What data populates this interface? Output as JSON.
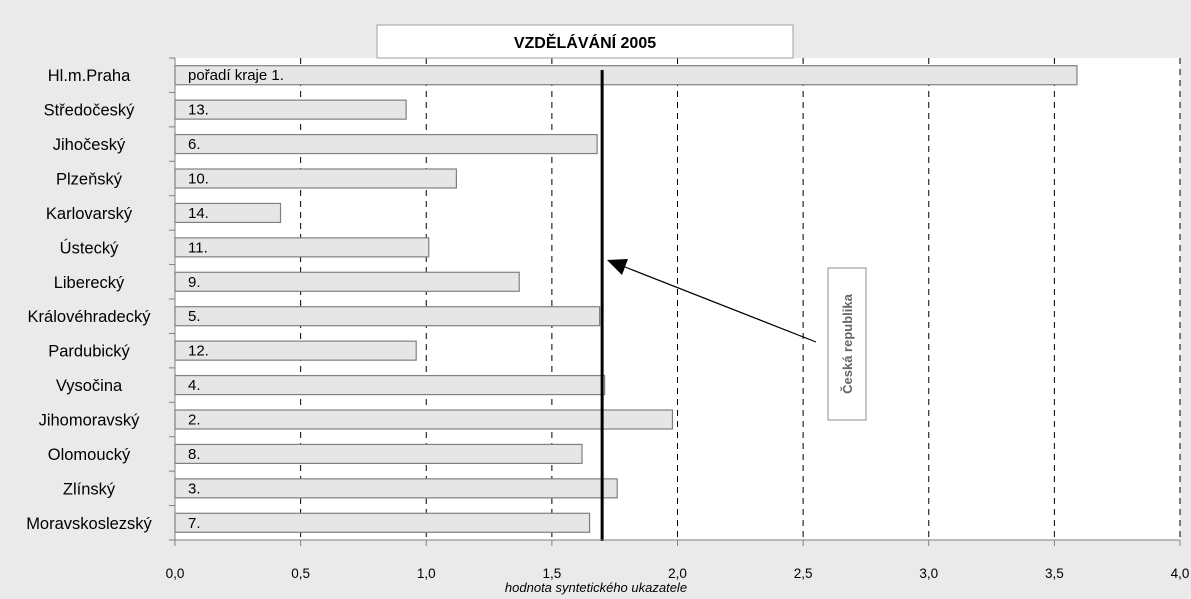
{
  "chart_data": {
    "type": "bar",
    "orientation": "horizontal",
    "title": "VZDĚLÁVÁNÍ 2005",
    "xlabel": "hodnota syntetického ukazatele",
    "ylabel": "",
    "xlim": [
      0,
      4
    ],
    "x_ticks": [
      "0,0",
      "0,5",
      "1,0",
      "1,5",
      "2,0",
      "2,5",
      "3,0",
      "3,5",
      "4,0"
    ],
    "grid": "vertical dashed",
    "categories": [
      "Hl.m.Praha",
      "Středočeský",
      "Jihočeský",
      "Plzeňský",
      "Karlovarský",
      "Ústecký",
      "Liberecký",
      "Královéhradecký",
      "Pardubický",
      "Vysočina",
      "Jihomoravský",
      "Olomoucký",
      "Zlínský",
      "Moravskoslezský"
    ],
    "values": [
      3.59,
      0.92,
      1.68,
      1.12,
      0.42,
      1.01,
      1.37,
      1.69,
      0.96,
      1.71,
      1.98,
      1.62,
      1.76,
      1.65
    ],
    "bar_labels": [
      "pořadí kraje  1.",
      "13.",
      "6.",
      "10.",
      "14.",
      "11.",
      "9.",
      "5.",
      "12.",
      "4.",
      "2.",
      "8.",
      "3.",
      "7."
    ],
    "reference_line": {
      "label": "Česká republika",
      "value": 1.7
    },
    "colors": {
      "bar_fill": "#e6e6e6",
      "bar_stroke": "#808080",
      "background": "#eaeaea",
      "plot_bg": "#ffffff",
      "reference": "#000000",
      "annotation_text": "#666666"
    }
  }
}
